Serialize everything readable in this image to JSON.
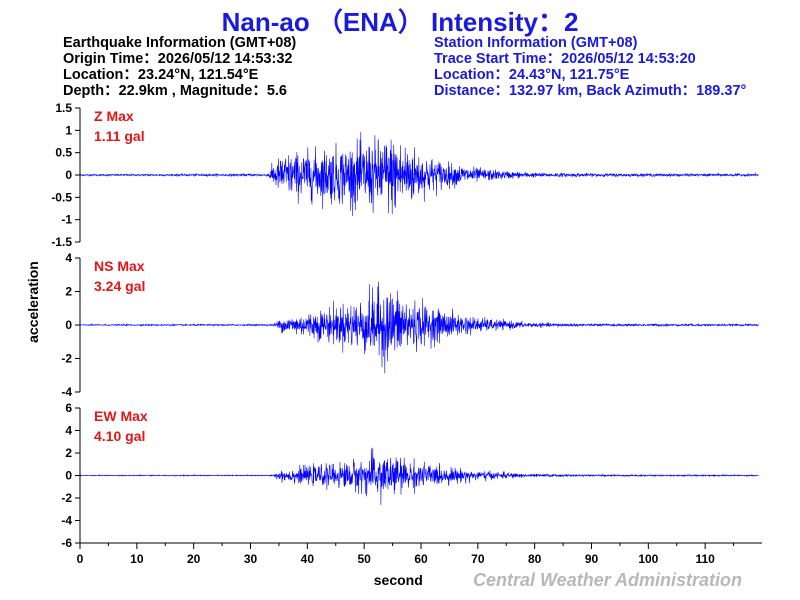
{
  "title": "Nan-ao （ENA） Intensity：2",
  "earthquake": {
    "header": "Earthquake Information  (GMT+08)",
    "origin_time": "Origin Time：2026/05/12 14:53:32",
    "location": "Location：23.24°N, 121.54°E",
    "depth_magnitude": "Depth：22.9km , Magnitude：5.6"
  },
  "station": {
    "header": "Station Information  (GMT+08)",
    "trace_start": "Trace Start Time：2026/05/12 14:53:20",
    "location": "Location：24.43°N, 121.75°E",
    "distance_azimuth": "Distance：132.97 km, Back Azimuth：189.37°"
  },
  "credit": "Central Weather Administration",
  "colors": {
    "title": "#1a1adf",
    "trace": "#0000ff",
    "max_label": "#e31515",
    "credit": "#b8b8b8"
  },
  "chart_data": {
    "type": "line",
    "xlabel": "second",
    "ylabel": "acceleration",
    "xlim": [
      0,
      120
    ],
    "x_ticks": [
      0,
      10,
      20,
      30,
      40,
      50,
      60,
      70,
      80,
      90,
      100,
      110
    ],
    "grid": false,
    "series": [
      {
        "name": "Z",
        "max_label": "Z Max",
        "max_value": "1.11 gal",
        "ylim": [
          -1.5,
          1.5
        ],
        "y_ticks": [
          -1.5,
          -1,
          -0.5,
          0,
          0.5,
          1,
          1.5
        ],
        "y_tick_labels": [
          "-1.5",
          "-1",
          "-0.5",
          "0",
          "0.5",
          "1",
          "1.5"
        ],
        "envelope": [
          [
            0,
            0.02
          ],
          [
            33,
            0.03
          ],
          [
            34,
            0.3
          ],
          [
            36,
            0.55
          ],
          [
            40,
            0.6
          ],
          [
            45,
            0.72
          ],
          [
            50,
            0.85
          ],
          [
            55,
            1.0
          ],
          [
            58,
            0.8
          ],
          [
            60,
            0.55
          ],
          [
            65,
            0.3
          ],
          [
            70,
            0.18
          ],
          [
            75,
            0.1
          ],
          [
            80,
            0.06
          ],
          [
            90,
            0.04
          ],
          [
            120,
            0.03
          ]
        ]
      },
      {
        "name": "NS",
        "max_label": "NS Max",
        "max_value": "3.24 gal",
        "ylim": [
          -4,
          4
        ],
        "y_ticks": [
          -4,
          -2,
          0,
          2,
          4
        ],
        "y_tick_labels": [
          "-4",
          "-2",
          "0",
          "2",
          "4"
        ],
        "envelope": [
          [
            0,
            0.04
          ],
          [
            34,
            0.05
          ],
          [
            35,
            0.4
          ],
          [
            38,
            0.7
          ],
          [
            42,
            1.0
          ],
          [
            46,
            1.4
          ],
          [
            50,
            1.9
          ],
          [
            53,
            2.6
          ],
          [
            55,
            2.4
          ],
          [
            58,
            1.8
          ],
          [
            62,
            1.2
          ],
          [
            65,
            0.9
          ],
          [
            70,
            0.5
          ],
          [
            75,
            0.3
          ],
          [
            80,
            0.15
          ],
          [
            90,
            0.08
          ],
          [
            120,
            0.06
          ]
        ]
      },
      {
        "name": "EW",
        "max_label": "EW Max",
        "max_value": "4.10 gal",
        "ylim": [
          -6,
          6
        ],
        "y_ticks": [
          -6,
          -4,
          -2,
          0,
          2,
          4,
          6
        ],
        "y_tick_labels": [
          "-6",
          "-4",
          "-2",
          "0",
          "2",
          "4",
          "6"
        ],
        "envelope": [
          [
            0,
            0.04
          ],
          [
            34,
            0.05
          ],
          [
            35,
            0.5
          ],
          [
            38,
            0.8
          ],
          [
            42,
            1.0
          ],
          [
            46,
            1.3
          ],
          [
            50,
            1.7
          ],
          [
            53,
            2.6
          ],
          [
            55,
            2.0
          ],
          [
            58,
            1.5
          ],
          [
            62,
            1.1
          ],
          [
            65,
            0.8
          ],
          [
            70,
            0.5
          ],
          [
            75,
            0.3
          ],
          [
            80,
            0.15
          ],
          [
            90,
            0.08
          ],
          [
            120,
            0.06
          ]
        ]
      }
    ]
  }
}
